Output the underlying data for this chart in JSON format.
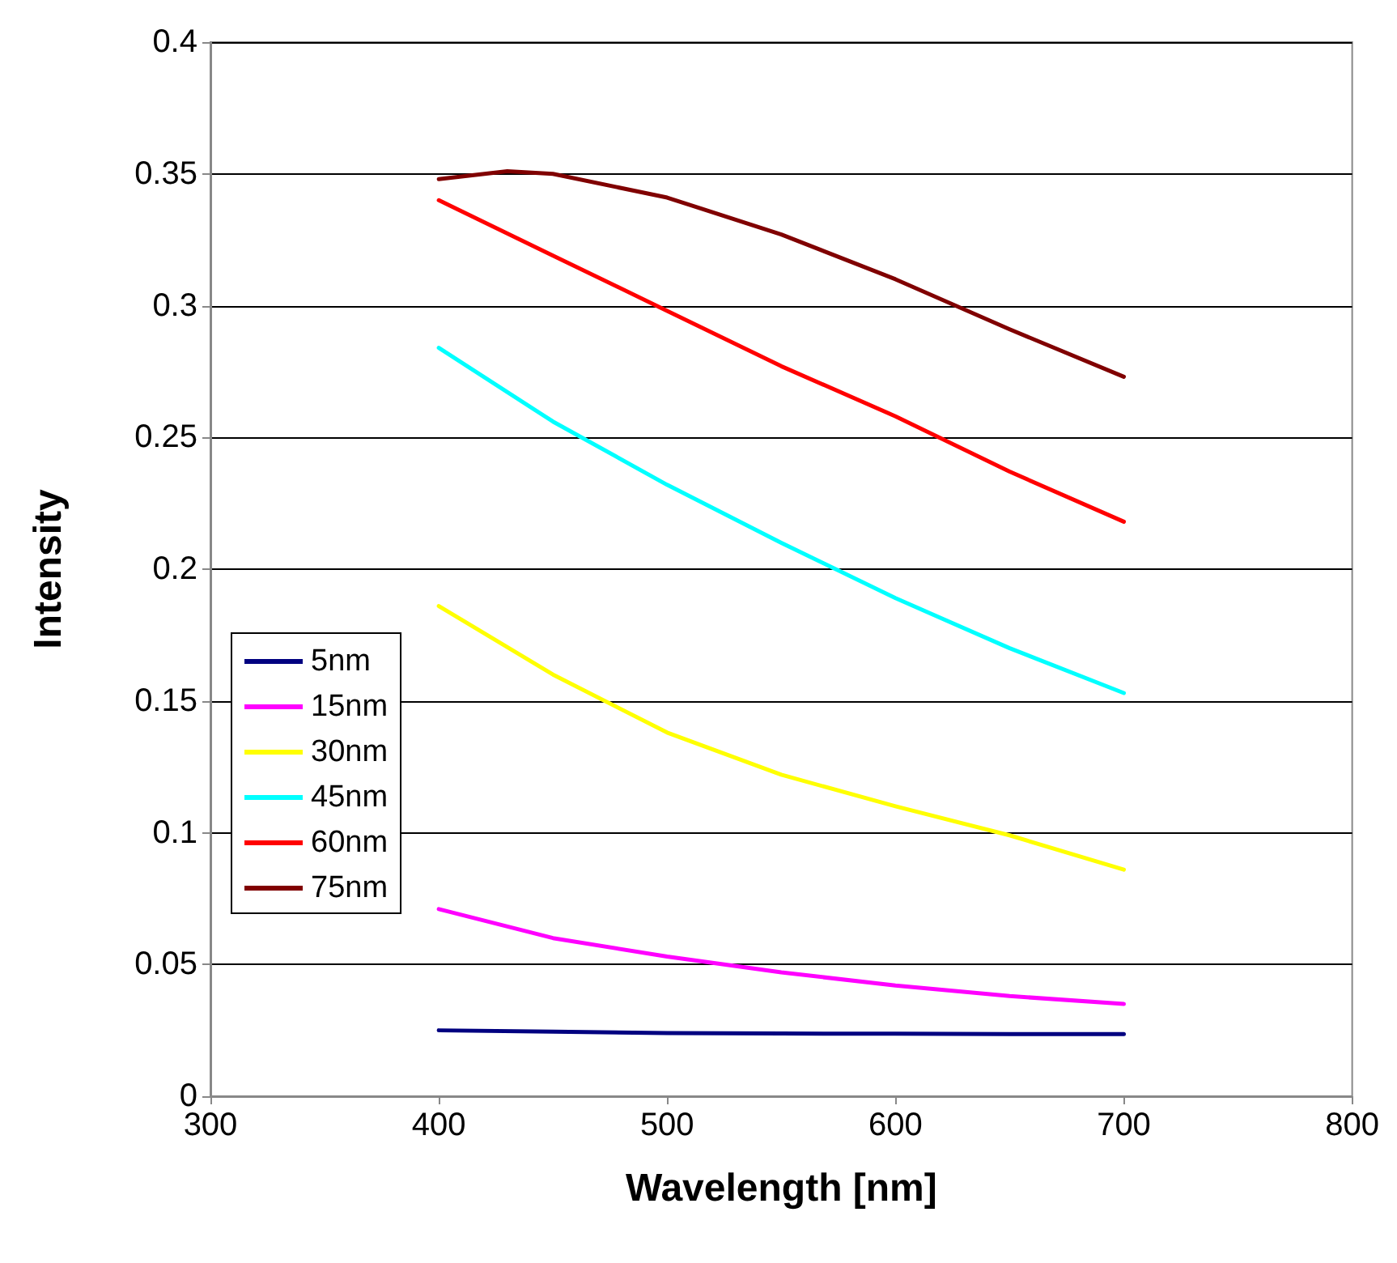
{
  "chart_data": {
    "type": "line",
    "xlabel": "Wavelength [nm]",
    "ylabel": "Intensity",
    "x": [
      400,
      450,
      500,
      550,
      600,
      650,
      700
    ],
    "series": [
      {
        "name": "5nm",
        "color": "#000080",
        "values": [
          0.025,
          0.0245,
          0.024,
          0.0238,
          0.0237,
          0.0236,
          0.0236
        ]
      },
      {
        "name": "15nm",
        "color": "#ff00ff",
        "values": [
          0.071,
          0.06,
          0.053,
          0.047,
          0.042,
          0.038,
          0.035
        ]
      },
      {
        "name": "30nm",
        "color": "#ffff00",
        "values": [
          0.186,
          0.16,
          0.138,
          0.122,
          0.11,
          0.099,
          0.086
        ]
      },
      {
        "name": "45nm",
        "color": "#00ffff",
        "values": [
          0.284,
          0.256,
          0.232,
          0.21,
          0.189,
          0.17,
          0.153
        ]
      },
      {
        "name": "60nm",
        "color": "#ff0000",
        "values": [
          0.34,
          0.319,
          0.298,
          0.277,
          0.258,
          0.237,
          0.218
        ]
      },
      {
        "name": "75nm",
        "x": [
          400,
          430,
          450,
          500,
          550,
          600,
          650,
          700
        ],
        "color": "#800000",
        "values": [
          0.348,
          0.351,
          0.35,
          0.341,
          0.327,
          0.31,
          0.291,
          0.273
        ]
      }
    ],
    "xlim": [
      300,
      800
    ],
    "xticks": [
      300,
      400,
      500,
      600,
      700,
      800
    ],
    "ylim": [
      0,
      0.4
    ],
    "yticks": [
      0,
      0.05,
      0.1,
      0.15,
      0.2,
      0.25,
      0.3,
      0.35,
      0.4
    ],
    "grid": "y",
    "legend": "bottom left",
    "marker": "none",
    "line_style": "solid"
  }
}
